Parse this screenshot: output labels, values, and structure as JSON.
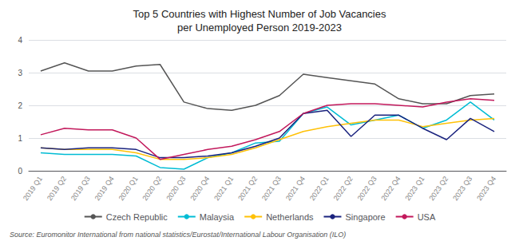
{
  "chart_data": {
    "type": "line",
    "title": "Top 5 Countries with Highest Number of Job Vacancies\nper Unemployed Person 2019-2023",
    "annotations": [
      "Source: Euromonitor International from national statistics/Eurostat/International Labour Organisation (ILO)"
    ],
    "categories": [
      "2019 Q1",
      "2019 Q2",
      "2019 Q3",
      "2019 Q4",
      "2020 Q1",
      "2020 Q2",
      "2020 Q3",
      "2020 Q4",
      "2021 Q1",
      "2021 Q2",
      "2021 Q3",
      "2021 Q4",
      "2022 Q1",
      "2022 Q2",
      "2022 Q3",
      "2022 Q4",
      "2023 Q1",
      "2023 Q2",
      "2023 Q3",
      "2023 Q4"
    ],
    "series": [
      {
        "name": "Czech Republic",
        "color": "#555555",
        "values": [
          3.05,
          3.3,
          3.05,
          3.05,
          3.2,
          3.25,
          2.1,
          1.9,
          1.85,
          2.0,
          2.3,
          2.95,
          2.85,
          2.75,
          2.65,
          2.2,
          2.05,
          2.05,
          2.3,
          2.35
        ]
      },
      {
        "name": "Malaysia",
        "color": "#00bcd4",
        "values": [
          0.55,
          0.5,
          0.5,
          0.5,
          0.45,
          0.1,
          0.05,
          0.4,
          0.55,
          0.85,
          0.9,
          1.75,
          1.95,
          1.4,
          1.55,
          1.7,
          1.3,
          1.55,
          2.1,
          1.55
        ]
      },
      {
        "name": "Netherlands",
        "color": "#ffc107",
        "values": [
          0.7,
          0.65,
          0.65,
          0.65,
          0.55,
          0.35,
          0.35,
          0.4,
          0.5,
          0.7,
          0.95,
          1.2,
          1.35,
          1.45,
          1.55,
          1.55,
          1.35,
          1.45,
          1.55,
          1.6
        ]
      },
      {
        "name": "Singapore",
        "color": "#1a237e",
        "values": [
          0.7,
          0.65,
          0.7,
          0.7,
          0.65,
          0.4,
          0.4,
          0.45,
          0.55,
          0.75,
          1.0,
          1.75,
          1.85,
          1.05,
          1.7,
          1.7,
          1.3,
          0.95,
          1.6,
          1.2
        ]
      },
      {
        "name": "USA",
        "color": "#c2185b",
        "values": [
          1.1,
          1.3,
          1.25,
          1.25,
          1.0,
          0.35,
          0.5,
          0.65,
          0.75,
          0.95,
          1.2,
          1.75,
          2.0,
          2.05,
          2.05,
          2.0,
          1.95,
          2.1,
          2.2,
          2.15
        ]
      }
    ],
    "ylim": [
      0,
      4
    ],
    "yticks": [
      0,
      1,
      2,
      3,
      4
    ],
    "grid": true,
    "legend": "bottom"
  }
}
